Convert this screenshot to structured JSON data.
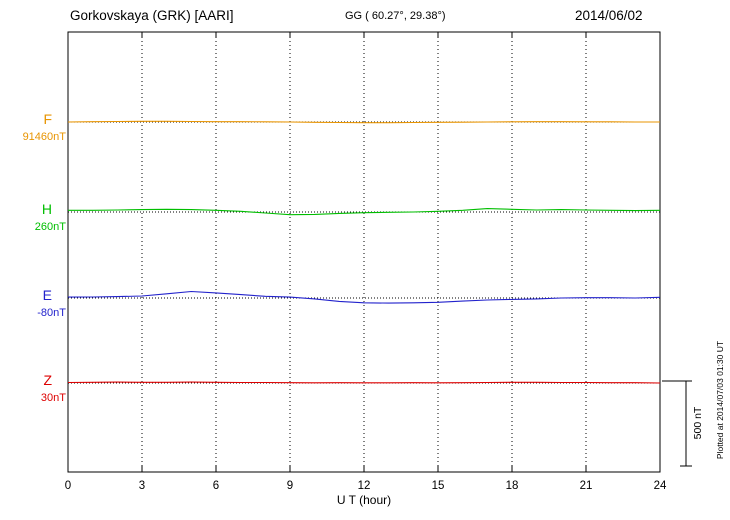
{
  "header": {
    "station": "Gorkovskaya (GRK)  [AARI]",
    "coords": "GG ( 60.27°,  29.38°)",
    "date": "2014/06/02"
  },
  "axis": {
    "xlabel": "U T (hour)"
  },
  "scalebar": {
    "label": "500 nT"
  },
  "footer": {
    "note": "Plotted at 2014/07/03 01:30 UT"
  },
  "chart_data": {
    "type": "line",
    "title": "Gorkovskaya (GRK)  [AARI] magnetogram 2014/06/02",
    "xlabel": "U T (hour)",
    "x_range": [
      0,
      24
    ],
    "x_ticks": [
      0,
      3,
      6,
      9,
      12,
      15,
      18,
      21,
      24
    ],
    "grid": "vertical-dotted",
    "scale_bar_nT": 500,
    "series": [
      {
        "name": "F",
        "baseline_value": "91460nT",
        "color": "#E89400",
        "values_nT": [
          0,
          2,
          3,
          4,
          4,
          3,
          2,
          2,
          1,
          0,
          -2,
          -3,
          -4,
          -4,
          -3,
          -2,
          -1,
          0,
          1,
          2,
          2,
          1,
          1,
          0,
          0
        ]
      },
      {
        "name": "H",
        "baseline_value": "260nT",
        "color": "#00BE00",
        "values_nT": [
          10,
          10,
          12,
          14,
          16,
          14,
          10,
          4,
          -6,
          -16,
          -14,
          -8,
          -4,
          -2,
          0,
          4,
          10,
          20,
          16,
          12,
          14,
          12,
          10,
          8,
          10
        ]
      },
      {
        "name": "E",
        "baseline_value": "-80nT",
        "color": "#2222CC",
        "values_nT": [
          5,
          6,
          8,
          12,
          25,
          38,
          30,
          20,
          10,
          5,
          -5,
          -20,
          -28,
          -30,
          -28,
          -25,
          -18,
          -12,
          -8,
          -5,
          0,
          2,
          2,
          0,
          4
        ]
      },
      {
        "name": "Z",
        "baseline_value": "30nT",
        "color": "#DD0000",
        "values_nT": [
          3,
          4,
          5,
          4,
          4,
          5,
          4,
          3,
          3,
          2,
          1,
          2,
          1,
          1,
          2,
          1,
          2,
          3,
          4,
          4,
          3,
          3,
          2,
          2,
          0
        ]
      }
    ]
  }
}
